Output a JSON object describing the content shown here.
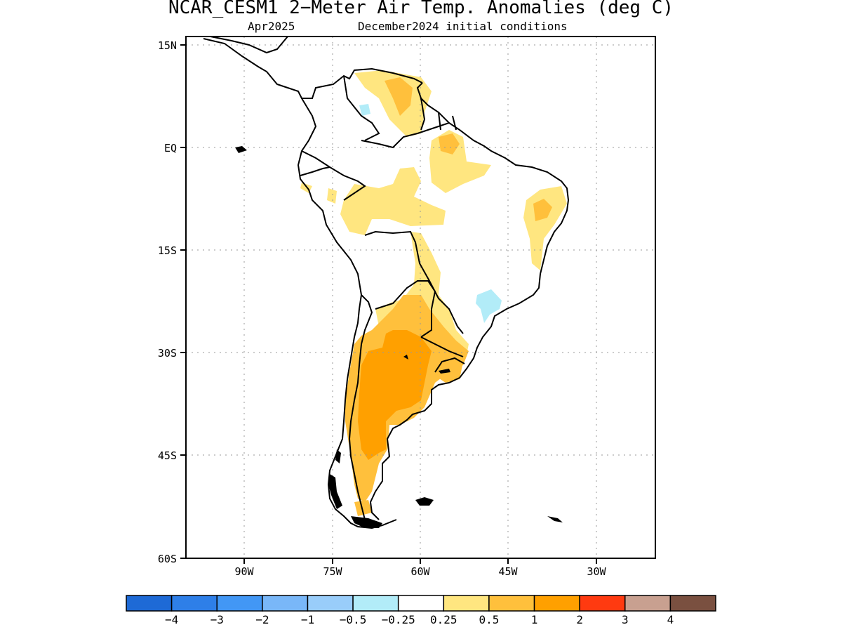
{
  "title": "NCAR_CESM1 2−Meter Air Temp. Anomalies (deg C)",
  "valid_month": "Apr2025",
  "init_label": "December2024 initial conditions",
  "lat_labels": [
    "15N",
    "EQ",
    "15S",
    "30S",
    "45S",
    "60S"
  ],
  "lon_labels": [
    "90W",
    "75W",
    "60W",
    "45W",
    "30W"
  ],
  "colorbar": {
    "colors": [
      "#1e6ad6",
      "#2e7fe8",
      "#4297f5",
      "#79b7f8",
      "#99cdfa",
      "#b2ecf8",
      "#ffffff",
      "#ffe680",
      "#ffc03c",
      "#ffa000",
      "#ff3a10",
      "#c8a090",
      "#7a5040"
    ],
    "labels": [
      "−4",
      "−3",
      "−2",
      "−1",
      "−0.5",
      "−0.25",
      "0.25",
      "0.5",
      "1",
      "2",
      "3",
      "4"
    ]
  }
}
